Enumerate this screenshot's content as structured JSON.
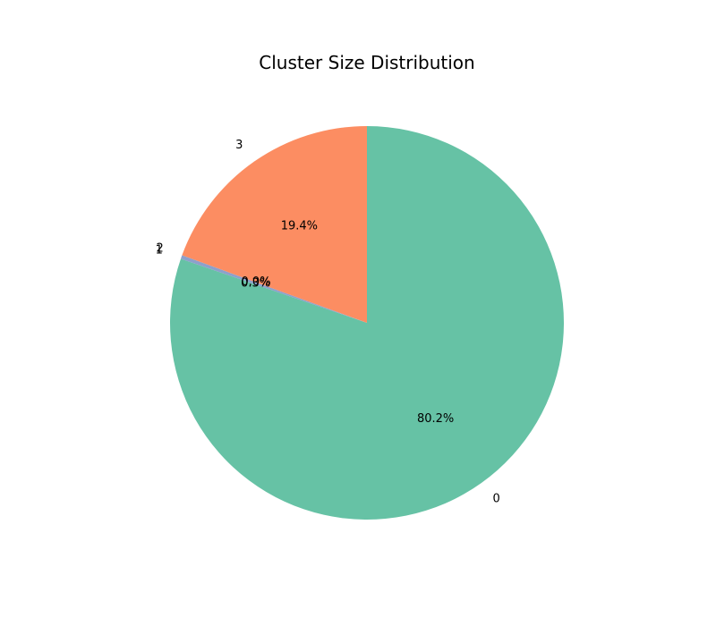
{
  "chart_data": {
    "type": "pie",
    "title": "Cluster Size Distribution",
    "start_angle_deg": 90,
    "direction": "clockwise",
    "slices": [
      {
        "label": "0",
        "percent": 80.2,
        "pct_label": "80.2%",
        "color": "#66c2a5"
      },
      {
        "label": "1",
        "percent": 0.3,
        "pct_label": "0.3%",
        "color": "#8da0cb"
      },
      {
        "label": "2",
        "percent": 0.0,
        "pct_label": "0.0%",
        "color": "#e78ac3"
      },
      {
        "label": "3",
        "percent": 19.4,
        "pct_label": "19.4%",
        "color": "#fc8d62"
      }
    ]
  }
}
